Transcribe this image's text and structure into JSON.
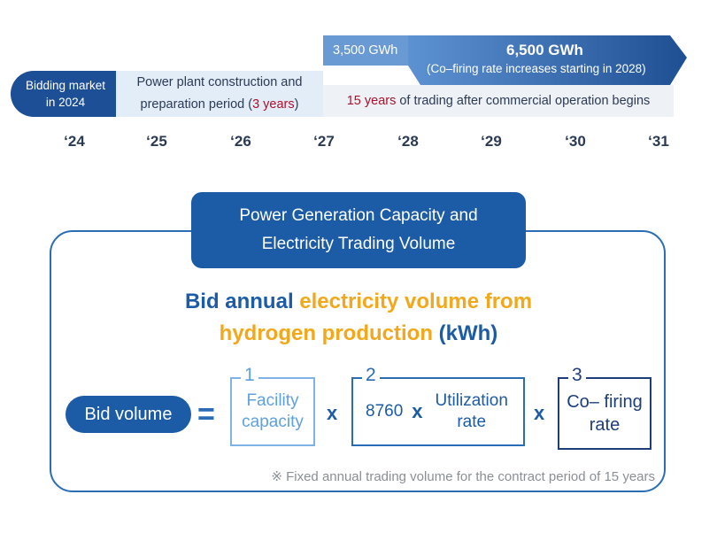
{
  "timeline": {
    "bidding": [
      "Bidding market",
      "in 2024"
    ],
    "construction": {
      "line1": "Power plant construction and",
      "line2_prefix": "preparation period (",
      "line2_highlight": "3 years",
      "line2_suffix": ")"
    },
    "arrow": {
      "start_volume": "3,500 GWh",
      "end_volume": "6,500 GWh",
      "note": "(Co–firing rate increases starting in 2028)"
    },
    "trading": {
      "highlight": "15 years",
      "rest": " of trading after commercial operation begins"
    },
    "years": [
      "‘24",
      "‘25",
      "‘26",
      "‘27",
      "‘28",
      "‘29",
      "‘30",
      "‘31"
    ],
    "colors": {
      "dark_blue": "#1c4f95",
      "light_blue": "#e3edf8",
      "highlight_red": "#b0102c"
    }
  },
  "formula": {
    "title": [
      "Power Generation Capacity and",
      "Electricity Trading Volume"
    ],
    "headline": {
      "part1_blue": "Bid annual ",
      "part2_orange": "electricity volume from",
      "part3_orange": "hydrogen production ",
      "part4_blue": "(kWh)"
    },
    "bid_volume_label": "Bid volume",
    "equals": "=",
    "times": "x",
    "box1": {
      "number": "1",
      "lines": [
        "Facility",
        "capacity"
      ]
    },
    "box2": {
      "number": "2",
      "hours": "8760",
      "times": "x",
      "lines": [
        "Utilization",
        "rate"
      ]
    },
    "box3": {
      "number": "3",
      "lines": [
        "Co– firing",
        "rate"
      ]
    },
    "footnote": "※ Fixed annual trading volume for the contract period of 15 years",
    "colors": {
      "accent_blue": "#1c5ba6",
      "accent_orange": "#f3a71b"
    }
  }
}
